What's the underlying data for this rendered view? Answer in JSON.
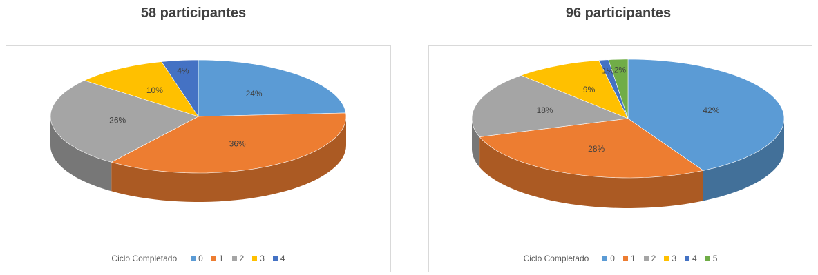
{
  "chart_data": [
    {
      "type": "pie",
      "title": "58 participantes",
      "legend_title": "Ciclo Completado",
      "legend_position": "bottom",
      "categories": [
        "0",
        "1",
        "2",
        "3",
        "4"
      ],
      "values": [
        24,
        36,
        26,
        10,
        4
      ],
      "labels": [
        "24%",
        "36%",
        "26%",
        "10%",
        "4%"
      ],
      "colors": [
        "#5b9bd5",
        "#ed7d31",
        "#a5a5a5",
        "#ffc000",
        "#4472c4"
      ]
    },
    {
      "type": "pie",
      "title": "96 participantes",
      "legend_title": "Ciclo Completado",
      "legend_position": "bottom",
      "categories": [
        "0",
        "1",
        "2",
        "3",
        "4",
        "5"
      ],
      "values": [
        42,
        28,
        18,
        9,
        1,
        2
      ],
      "labels": [
        "42%",
        "28%",
        "18%",
        "9%",
        "1%",
        "2%"
      ],
      "colors": [
        "#5b9bd5",
        "#ed7d31",
        "#a5a5a5",
        "#ffc000",
        "#4472c4",
        "#70ad47"
      ]
    }
  ]
}
